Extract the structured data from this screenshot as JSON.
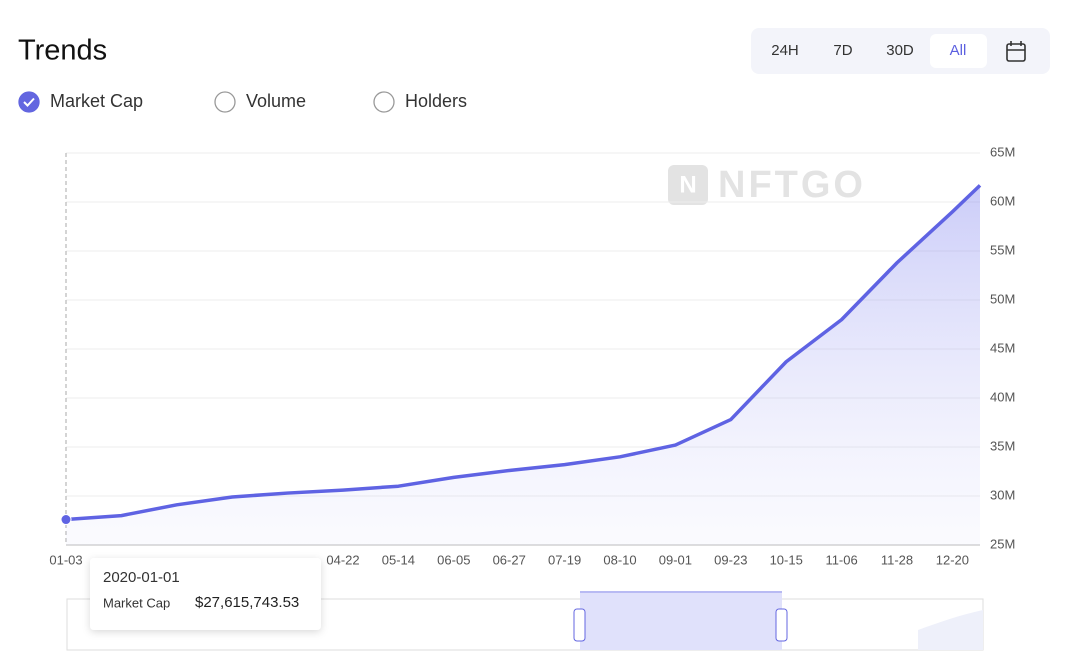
{
  "header": {
    "title": "Trends",
    "tabs": [
      "24H",
      "7D",
      "30D",
      "All"
    ],
    "active_tab": 3,
    "options": [
      "Market Cap",
      "Volume",
      "Holders"
    ],
    "selected_option": 0
  },
  "watermark": "NFTGO",
  "chart_data": {
    "type": "line",
    "categories": [
      "01-03",
      null,
      null,
      null,
      null,
      "04-22",
      "05-14",
      "06-05",
      "06-27",
      "07-19",
      "08-10",
      "09-01",
      "09-23",
      "10-15",
      "11-06",
      "11-28",
      "12-20",
      null
    ],
    "series": [
      {
        "name": "Market Cap",
        "color": "#5f63e3",
        "values": [
          27.6,
          28.0,
          29.1,
          29.9,
          30.3,
          30.6,
          31.0,
          31.9,
          32.6,
          33.2,
          34.0,
          35.2,
          37.8,
          43.7,
          48.0,
          53.8,
          59.0,
          61.7
        ]
      }
    ],
    "ylim": [
      25,
      65
    ],
    "yticks": [
      {
        "value": 25,
        "label": "25M"
      },
      {
        "value": 30,
        "label": "30M"
      },
      {
        "value": 35,
        "label": "35M"
      },
      {
        "value": 40,
        "label": "40M"
      },
      {
        "value": 45,
        "label": "45M"
      },
      {
        "value": 50,
        "label": "50M"
      },
      {
        "value": 55,
        "label": "55M"
      },
      {
        "value": 60,
        "label": "60M"
      },
      {
        "value": 65,
        "label": "65M"
      }
    ],
    "grid": true,
    "tooltip": {
      "date": "2020-01-01",
      "label": "Market Cap",
      "value": "$27,615,743.53"
    }
  }
}
